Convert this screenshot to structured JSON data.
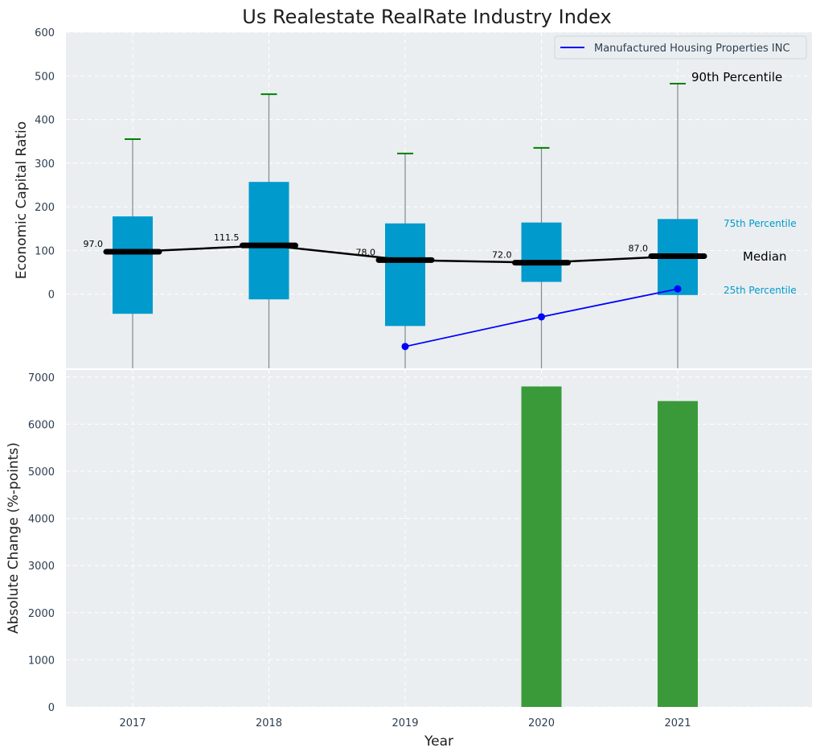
{
  "title": "Us Realestate RealRate Industry Index",
  "colors": {
    "box": "#009acd",
    "whisker_cap": "#008000",
    "median_line": "#000000",
    "company": "#0000ff",
    "bars": "#3a9a3a",
    "panel_bg": "#eaeef0",
    "pct_label": "#009acd"
  },
  "chart_data": [
    {
      "type": "box",
      "ylabel": "Economic Capital Ratio",
      "ylim": [
        -170,
        600
      ],
      "yticks": [
        0,
        100,
        200,
        300,
        400,
        500,
        600
      ],
      "grid": true,
      "legend_position": "top-right",
      "categories": [
        "2017",
        "2018",
        "2019",
        "2020",
        "2021"
      ],
      "boxes": [
        {
          "year": "2017",
          "q1": -45,
          "median": 97.0,
          "q3": 178,
          "p90": 355,
          "median_label": "97.0"
        },
        {
          "year": "2018",
          "q1": -12,
          "median": 111.5,
          "q3": 257,
          "p90": 458,
          "median_label": "111.5"
        },
        {
          "year": "2019",
          "q1": -73,
          "median": 78.0,
          "q3": 162,
          "p90": 322,
          "median_label": "78.0"
        },
        {
          "year": "2020",
          "q1": 28,
          "median": 72.0,
          "q3": 164,
          "p90": 335,
          "median_label": "72.0"
        },
        {
          "year": "2021",
          "q1": -2,
          "median": 87.0,
          "q3": 172,
          "p90": 482,
          "median_label": "87.0"
        }
      ],
      "median_line": [
        97.0,
        111.5,
        78.0,
        72.0,
        87.0
      ],
      "series": [
        {
          "name": "Manufactured Housing Properties INC",
          "x": [
            "2019",
            "2020",
            "2021"
          ],
          "values": [
            -120,
            -52,
            12
          ]
        }
      ],
      "annotations": {
        "p90": "90th Percentile",
        "p75": "75th Percentile",
        "median": "Median",
        "p25": "25th Percentile"
      }
    },
    {
      "type": "bar",
      "xlabel": "Year",
      "ylabel": "Absolute Change (%-points)",
      "ylim": [
        0,
        7150
      ],
      "yticks": [
        0,
        1000,
        2000,
        3000,
        4000,
        5000,
        6000,
        7000
      ],
      "grid": true,
      "categories": [
        "2017",
        "2018",
        "2019",
        "2020",
        "2021"
      ],
      "values": [
        null,
        null,
        null,
        6800,
        6490
      ]
    }
  ]
}
